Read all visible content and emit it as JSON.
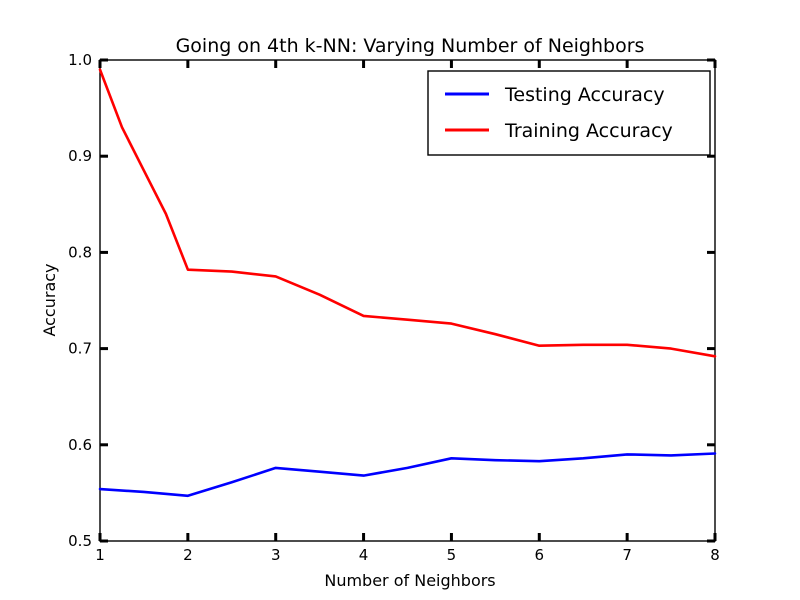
{
  "chart_data": {
    "type": "line",
    "title": "Going on 4th k-NN: Varying Number of Neighbors",
    "xlabel": "Number of Neighbors",
    "ylabel": "Accuracy",
    "xlim": [
      1,
      8
    ],
    "ylim": [
      0.5,
      1.0
    ],
    "xticks": [
      1,
      2,
      3,
      4,
      5,
      6,
      7,
      8
    ],
    "yticks": [
      0.5,
      0.6,
      0.7,
      0.8,
      0.9,
      1.0
    ],
    "grid": false,
    "legend_position": "top-right",
    "series": [
      {
        "name": "Testing Accuracy",
        "color": "#0000ff",
        "x": [
          1,
          1.5,
          2,
          2.5,
          3,
          3.5,
          4,
          4.5,
          5,
          5.5,
          6,
          6.5,
          7,
          7.5,
          8
        ],
        "values": [
          0.554,
          0.551,
          0.547,
          0.561,
          0.576,
          0.572,
          0.568,
          0.576,
          0.586,
          0.584,
          0.583,
          0.586,
          0.59,
          0.589,
          0.591
        ]
      },
      {
        "name": "Training Accuracy",
        "color": "#ff0000",
        "x": [
          1,
          1.25,
          1.5,
          1.75,
          2,
          2.5,
          3,
          3.5,
          4,
          4.5,
          5,
          5.5,
          6,
          6.5,
          7,
          7.5,
          8
        ],
        "values": [
          0.99,
          0.93,
          0.885,
          0.84,
          0.782,
          0.78,
          0.775,
          0.756,
          0.734,
          0.73,
          0.726,
          0.715,
          0.703,
          0.704,
          0.704,
          0.7,
          0.692
        ]
      }
    ]
  }
}
